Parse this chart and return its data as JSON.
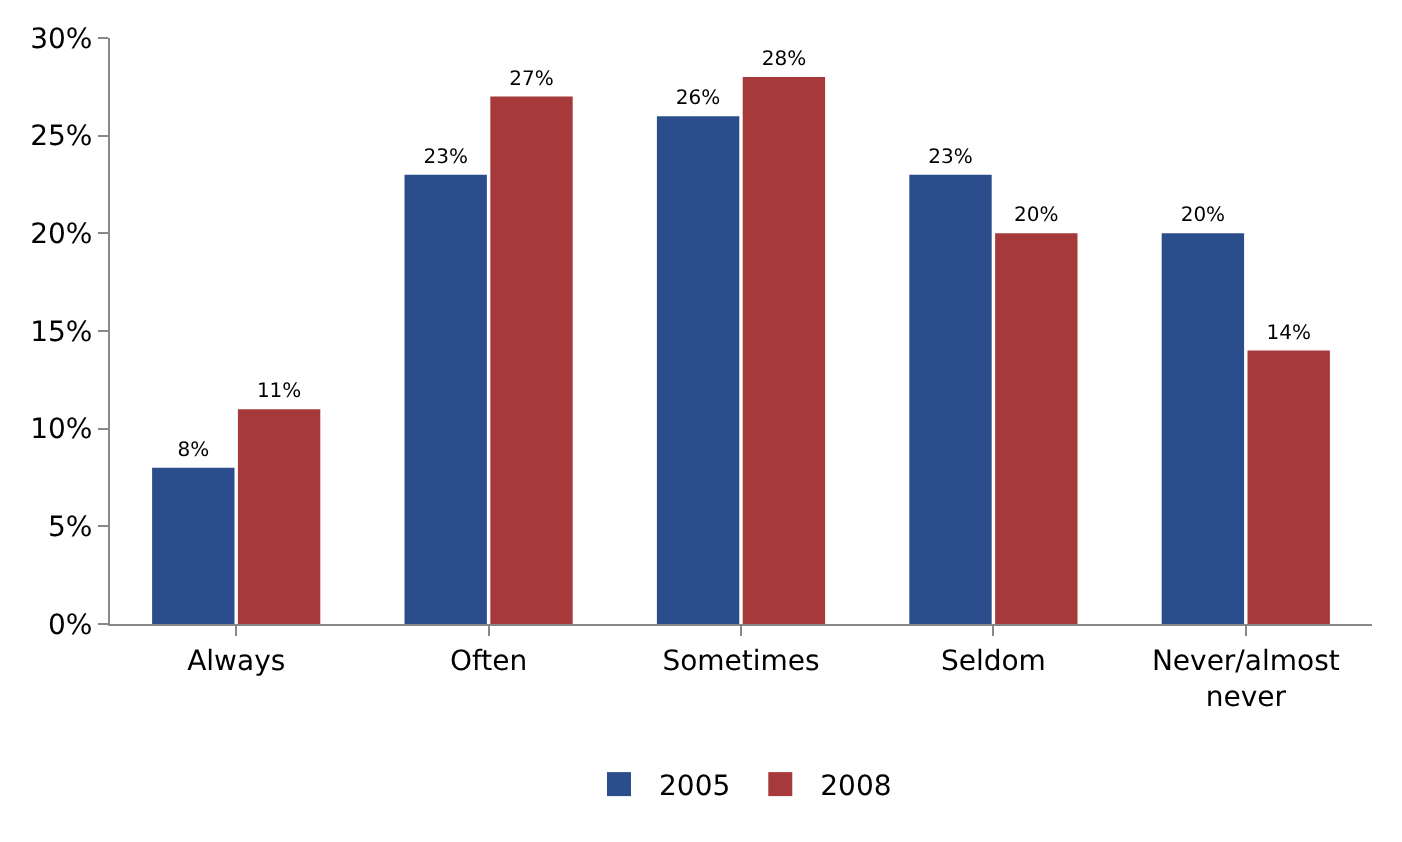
{
  "chart_data": {
    "type": "bar",
    "categories": [
      "Always",
      "Often",
      "Sometimes",
      "Seldom",
      "Never/almost never"
    ],
    "series": [
      {
        "name": "2005",
        "color": "#2b4d8c",
        "values": [
          8,
          23,
          26,
          23,
          20
        ],
        "value_labels": [
          "8%",
          "23%",
          "26%",
          "23%",
          "20%"
        ]
      },
      {
        "name": "2008",
        "color": "#a63a3a",
        "values": [
          11,
          27,
          28,
          20,
          14
        ],
        "value_labels": [
          "11%",
          "27%",
          "28%",
          "20%",
          "14%"
        ]
      }
    ],
    "ylim": [
      0,
      30
    ],
    "yticks": [
      {
        "value": 0,
        "label": "0%"
      },
      {
        "value": 5,
        "label": "5%"
      },
      {
        "value": 10,
        "label": "10%"
      },
      {
        "value": 15,
        "label": "15%"
      },
      {
        "value": 20,
        "label": "20%"
      },
      {
        "value": 25,
        "label": "25%"
      },
      {
        "value": 30,
        "label": "30%"
      }
    ],
    "legend": "bottom"
  }
}
